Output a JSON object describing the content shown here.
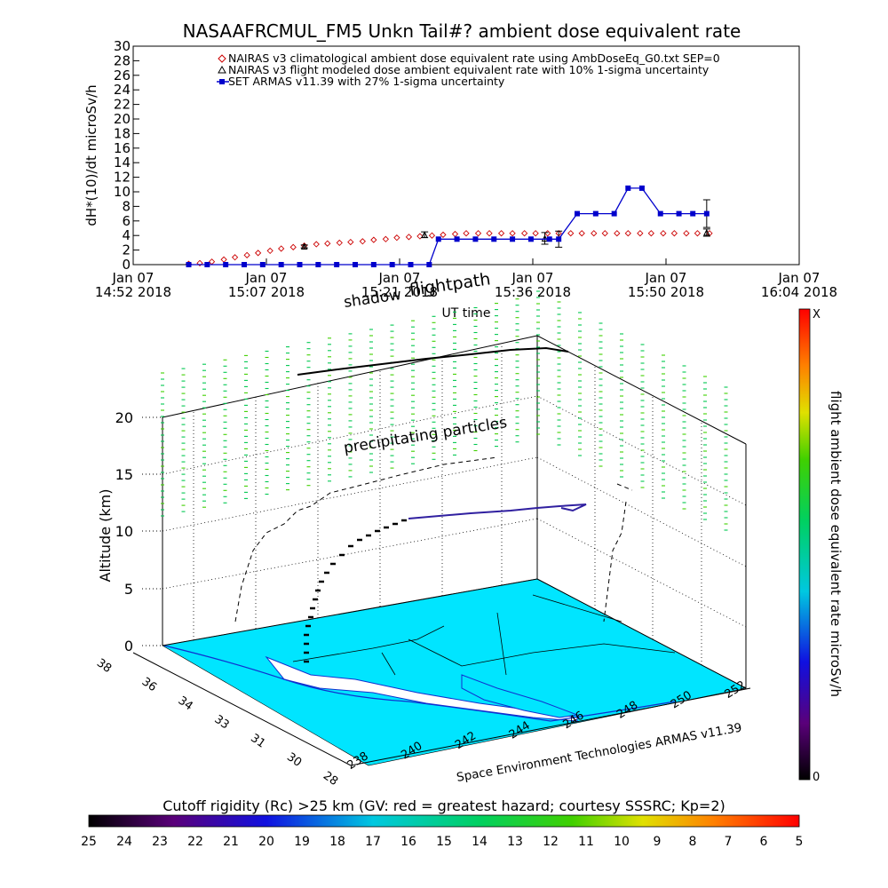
{
  "title": "NASAAFRCMUL_FM5 Unkn Tail#? ambient dose equivalent rate",
  "top_chart": {
    "ylabel": "dH*(10)/dt microSv/h",
    "xlabel": "UT time",
    "y_ticks": [
      "0",
      "2",
      "4",
      "6",
      "8",
      "10",
      "12",
      "14",
      "16",
      "18",
      "20",
      "22",
      "24",
      "26",
      "28",
      "30"
    ],
    "x_ticks": [
      {
        "d": "Jan 07",
        "t": "14:52 2018"
      },
      {
        "d": "Jan 07",
        "t": "15:07 2018"
      },
      {
        "d": "Jan 07",
        "t": "15:21 2018"
      },
      {
        "d": "Jan 07",
        "t": "15:36 2018"
      },
      {
        "d": "Jan 07",
        "t": "15:50 2018"
      },
      {
        "d": "Jan 07",
        "t": "16:04 2018"
      }
    ],
    "legend": [
      "NAIRAS v3 climatological ambient dose equivalent rate using AmbDoseEq_G0.txt SEP=0",
      "NAIRAS v3 flight modeled dose ambient equivalent rate with 10% 1-sigma uncertainty",
      "SET ARMAS v11.39 with 27% 1-sigma uncertainty"
    ]
  },
  "chart_data": [
    {
      "type": "scatter",
      "title": "NASAAFRCMUL_FM5 Unkn Tail#? ambient dose equivalent rate",
      "xlabel": "UT time",
      "ylabel": "dH*(10)/dt microSv/h",
      "xlim": [
        0,
        72
      ],
      "ylim": [
        0,
        30
      ],
      "x_unit": "minutes after Jan 07 14:52 2018",
      "series": [
        {
          "name": "NAIRAS v3 climatological ambient dose equivalent rate using AmbDoseEq_G0.txt SEP=0",
          "color": "#cc0000",
          "marker": "diamond",
          "x": [
            6,
            7.2,
            8.5,
            9.8,
            11,
            12.3,
            13.5,
            14.8,
            16,
            17.3,
            18.5,
            19.8,
            21,
            22.3,
            23.5,
            24.8,
            26,
            27.3,
            28.5,
            29.8,
            31,
            32.3,
            33.5,
            34.8,
            36,
            37.3,
            38.5,
            39.8,
            41,
            42.3,
            43.5,
            44.8,
            46,
            47.3,
            48.5,
            49.8,
            51,
            52.3,
            53.5,
            54.8,
            56,
            57.3,
            58.5,
            59.8,
            61,
            62.3
          ],
          "y": [
            0.1,
            0.2,
            0.4,
            0.7,
            1.0,
            1.3,
            1.6,
            1.9,
            2.2,
            2.4,
            2.6,
            2.8,
            2.9,
            3.0,
            3.1,
            3.2,
            3.4,
            3.5,
            3.7,
            3.8,
            3.9,
            4.0,
            4.1,
            4.2,
            4.3,
            4.3,
            4.3,
            4.3,
            4.3,
            4.3,
            4.3,
            4.3,
            4.3,
            4.3,
            4.3,
            4.3,
            4.3,
            4.3,
            4.3,
            4.3,
            4.3,
            4.3,
            4.3,
            4.3,
            4.3,
            4.3
          ]
        },
        {
          "name": "NAIRAS v3 flight modeled dose ambient equivalent rate with 10% 1-sigma uncertainty",
          "color": "#000000",
          "marker": "triangle",
          "x": [
            18.5,
            31.5,
            44.5,
            62
          ],
          "y": [
            2.5,
            4.1,
            3.6,
            4.4
          ],
          "err": [
            0.2,
            0.4,
            0.8,
            0.5
          ]
        },
        {
          "name": "SET ARMAS v11.39 with 27% 1-sigma uncertainty",
          "color": "#0000cc",
          "marker": "square",
          "x": [
            6,
            8,
            10,
            12,
            14,
            16,
            18,
            20,
            22,
            24,
            26,
            28,
            30,
            32,
            33,
            35,
            37,
            39,
            41,
            43,
            45,
            46,
            48,
            50,
            52,
            53.5,
            55,
            57,
            59,
            60.5,
            62
          ],
          "y": [
            0,
            0,
            0,
            0,
            0,
            0,
            0,
            0,
            0,
            0,
            0,
            0,
            0,
            0,
            3.5,
            3.5,
            3.5,
            3.5,
            3.5,
            3.5,
            3.5,
            3.5,
            7,
            7,
            7,
            10.5,
            10.5,
            7,
            7,
            7,
            7
          ],
          "err": [
            0,
            0,
            0,
            0,
            0,
            0,
            0,
            0,
            0,
            0,
            0,
            0,
            0,
            0,
            0,
            0,
            0,
            0,
            0,
            0,
            0,
            1.1,
            0,
            0,
            0,
            0,
            0,
            0,
            0,
            0,
            1.9
          ]
        }
      ]
    },
    {
      "type": "line",
      "title": "",
      "ylabel": "Altitude (km)",
      "zlim": [
        0,
        20
      ],
      "z_ticks": [
        "0",
        "5",
        "10",
        "15",
        "20"
      ],
      "lat_ticks": [
        "28",
        "30",
        "31",
        "33",
        "34",
        "36",
        "38"
      ],
      "lon_ticks": [
        "238",
        "240",
        "242",
        "244",
        "246",
        "248",
        "250",
        "252"
      ],
      "annotations": [
        "shadow",
        "flightpath",
        "precipitating particles"
      ],
      "credit": "Space Environment Technologies ARMAS v11.39",
      "flight_altitude_km": [
        0,
        0.5,
        1,
        2,
        3,
        4,
        5,
        6,
        7,
        8,
        9,
        10,
        11,
        11.5,
        12,
        12,
        12,
        12,
        12,
        12
      ],
      "colorbar": {
        "label": "flight ambient dose equivalent rate microSv/h",
        "top": "X",
        "bottom": "0"
      }
    },
    {
      "type": "heatmap",
      "label": "Cutoff rigidity (Rc) >25 km (GV: red = greatest hazard; courtesy SSSRC; Kp=2)",
      "ticks": [
        "25",
        "24",
        "23",
        "22",
        "21",
        "20",
        "19",
        "18",
        "17",
        "16",
        "15",
        "14",
        "13",
        "12",
        "11",
        "10",
        "9",
        "8",
        "7",
        "6",
        "5"
      ]
    }
  ]
}
